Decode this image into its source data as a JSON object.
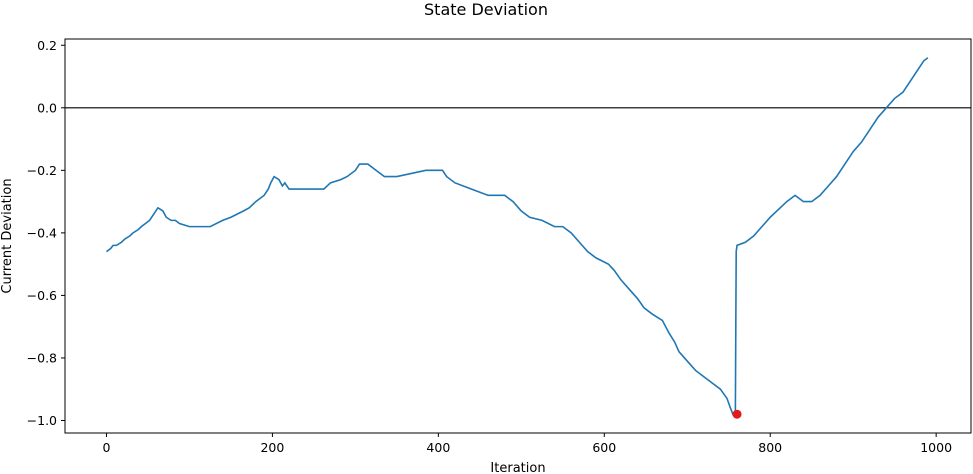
{
  "chart_data": {
    "type": "line",
    "title": "State Deviation",
    "xlabel": "Iteration",
    "ylabel": "Current Deviation",
    "xlim": [
      -50,
      1042
    ],
    "ylim": [
      -1.04,
      0.22
    ],
    "xticks": [
      0,
      200,
      400,
      600,
      800,
      1000
    ],
    "yticks": [
      -1.0,
      -0.8,
      -0.6,
      -0.4,
      -0.2,
      0.0,
      0.2
    ],
    "grid": false,
    "reference_line": {
      "y": 0.0,
      "color": "#000000"
    },
    "series": [
      {
        "color": "#1f77b4",
        "x": [
          0,
          5,
          8,
          12,
          18,
          22,
          28,
          32,
          38,
          42,
          47,
          52,
          57,
          62,
          68,
          72,
          78,
          83,
          88,
          100,
          125,
          140,
          150,
          165,
          172,
          180,
          190,
          195,
          198,
          202,
          208,
          212,
          215,
          220,
          245,
          262,
          270,
          282,
          290,
          300,
          305,
          315,
          325,
          335,
          340,
          350,
          385,
          405,
          410,
          420,
          440,
          460,
          480,
          490,
          500,
          510,
          525,
          540,
          550,
          560,
          570,
          580,
          590,
          605,
          612,
          620,
          630,
          640,
          648,
          658,
          670,
          678,
          685,
          690,
          700,
          710,
          720,
          730,
          740,
          748,
          752,
          755,
          758,
          759,
          760,
          770,
          780,
          790,
          800,
          820,
          830,
          840,
          850,
          860,
          870,
          880,
          890,
          900,
          910,
          920,
          930,
          940,
          950,
          960,
          965,
          970,
          975,
          980,
          985,
          990
        ],
        "values": [
          -0.46,
          -0.45,
          -0.44,
          -0.44,
          -0.43,
          -0.42,
          -0.41,
          -0.4,
          -0.39,
          -0.38,
          -0.37,
          -0.36,
          -0.34,
          -0.32,
          -0.33,
          -0.35,
          -0.36,
          -0.36,
          -0.37,
          -0.38,
          -0.38,
          -0.36,
          -0.35,
          -0.33,
          -0.32,
          -0.3,
          -0.28,
          -0.26,
          -0.24,
          -0.22,
          -0.23,
          -0.25,
          -0.24,
          -0.26,
          -0.26,
          -0.26,
          -0.24,
          -0.23,
          -0.22,
          -0.2,
          -0.18,
          -0.18,
          -0.2,
          -0.22,
          -0.22,
          -0.22,
          -0.2,
          -0.2,
          -0.22,
          -0.24,
          -0.26,
          -0.28,
          -0.28,
          -0.3,
          -0.33,
          -0.35,
          -0.36,
          -0.38,
          -0.38,
          -0.4,
          -0.43,
          -0.46,
          -0.48,
          -0.5,
          -0.52,
          -0.55,
          -0.58,
          -0.61,
          -0.64,
          -0.66,
          -0.68,
          -0.72,
          -0.75,
          -0.78,
          -0.81,
          -0.84,
          -0.86,
          -0.88,
          -0.9,
          -0.93,
          -0.96,
          -0.98,
          -0.97,
          -0.46,
          -0.44,
          -0.43,
          -0.41,
          -0.38,
          -0.35,
          -0.3,
          -0.28,
          -0.3,
          -0.3,
          -0.28,
          -0.25,
          -0.22,
          -0.18,
          -0.14,
          -0.11,
          -0.07,
          -0.03,
          0.0,
          0.03,
          0.05,
          0.07,
          0.09,
          0.11,
          0.13,
          0.15,
          0.16
        ]
      }
    ],
    "marker": {
      "x": 760,
      "y": -0.98,
      "color": "#e31a1c"
    }
  }
}
